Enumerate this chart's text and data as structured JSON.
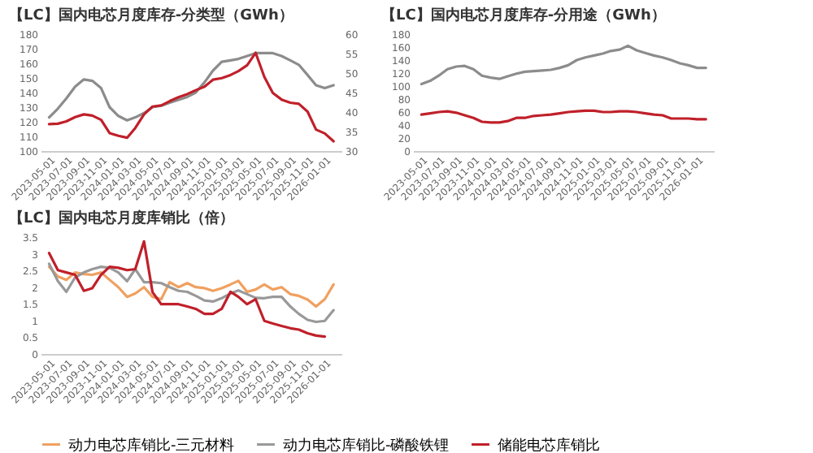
{
  "chart_data": [
    {
      "type": "line",
      "title": "【LC】国内电芯月度库存-分类型（GWh）",
      "x": [
        "2023-05",
        "2023-06",
        "2023-07",
        "2023-08",
        "2023-09",
        "2023-10",
        "2023-11",
        "2023-12",
        "2024-01",
        "2024-02",
        "2024-03",
        "2024-04",
        "2024-05",
        "2024-06",
        "2024-07",
        "2024-08",
        "2024-09",
        "2024-10",
        "2024-11",
        "2024-12",
        "2025-01",
        "2025-02",
        "2025-03",
        "2025-04",
        "2025-05",
        "2025-06",
        "2025-07",
        "2025-08",
        "2025-09",
        "2025-10",
        "2025-11",
        "2025-12",
        "2026-01",
        "2026-02"
      ],
      "xlim": [
        "2023-04-01",
        "2026-03-01"
      ],
      "xticks": [
        "2023-05-01",
        "2023-07-01",
        "2023-09-01",
        "2023-11-01",
        "2024-01-01",
        "2024-03-01",
        "2024-05-01",
        "2024-07-01",
        "2024-09-01",
        "2024-11-01",
        "2025-01-01",
        "2025-03-01",
        "2025-05-01",
        "2025-07-01",
        "2025-09-01",
        "2025-11-01",
        "2026-01-01"
      ],
      "ylim": [
        100,
        180
      ],
      "yticks": [
        100,
        110,
        120,
        130,
        140,
        150,
        160,
        170,
        180
      ],
      "y2lim": [
        30,
        60
      ],
      "y2ticks": [
        30,
        35,
        40,
        45,
        50,
        55,
        60
      ],
      "series": [
        {
          "color": "#8c8c8c",
          "values": [
            123,
            129,
            136,
            144,
            149,
            148,
            143,
            130,
            124,
            121,
            123,
            126,
            130,
            131,
            133,
            135,
            137,
            140,
            147,
            155,
            161,
            162,
            163,
            165,
            167,
            167,
            167,
            165,
            162,
            159,
            152,
            145,
            143,
            145
          ]
        },
        {
          "color": "#c0202a",
          "axis": "y2",
          "values": [
            36.9,
            37.0,
            37.6,
            38.7,
            39.4,
            39.1,
            38.0,
            34.6,
            33.9,
            33.4,
            35.9,
            39.4,
            41.4,
            41.7,
            42.8,
            43.8,
            44.6,
            45.6,
            46.5,
            48.3,
            48.7,
            49.5,
            50.5,
            52.0,
            55.2,
            49.0,
            44.9,
            43.2,
            42.4,
            42.1,
            40.1,
            35.5,
            34.5,
            32.5
          ]
        }
      ]
    },
    {
      "type": "line",
      "title": "【LC】国内电芯月度库存-分用途（GWh）",
      "x": [
        "2023-05",
        "2023-06",
        "2023-07",
        "2023-08",
        "2023-09",
        "2023-10",
        "2023-11",
        "2023-12",
        "2024-01",
        "2024-02",
        "2024-03",
        "2024-04",
        "2024-05",
        "2024-06",
        "2024-07",
        "2024-08",
        "2024-09",
        "2024-10",
        "2024-11",
        "2024-12",
        "2025-01",
        "2025-02",
        "2025-03",
        "2025-04",
        "2025-05",
        "2025-06",
        "2025-07",
        "2025-08",
        "2025-09",
        "2025-10",
        "2025-11",
        "2025-12",
        "2026-01",
        "2026-02"
      ],
      "xlim": [
        "2023-04-01",
        "2026-03-01"
      ],
      "xticks": [
        "2023-05-01",
        "2023-07-01",
        "2023-09-01",
        "2023-11-01",
        "2024-01-01",
        "2024-03-01",
        "2024-05-01",
        "2024-07-01",
        "2024-09-01",
        "2024-11-01",
        "2025-01-01",
        "2025-03-01",
        "2025-05-01",
        "2025-07-01",
        "2025-09-01",
        "2025-11-01",
        "2026-01-01"
      ],
      "ylim": [
        0,
        180
      ],
      "yticks": [
        0,
        20,
        40,
        60,
        80,
        100,
        120,
        140,
        160,
        180
      ],
      "series": [
        {
          "color": "#8c8c8c",
          "values": [
            103,
            108,
            116,
            126,
            130,
            131,
            126,
            116,
            113,
            111,
            115,
            119,
            122,
            123,
            124,
            125,
            128,
            132,
            140,
            144,
            147,
            150,
            154,
            156,
            162,
            155,
            151,
            147,
            144,
            140,
            135,
            132,
            128,
            128
          ]
        },
        {
          "color": "#c0202a",
          "values": [
            56,
            58,
            60,
            61,
            59,
            55,
            51,
            45,
            44,
            44,
            46,
            51,
            51,
            54,
            55,
            56,
            58,
            60,
            61,
            62,
            62,
            60,
            60,
            61,
            61,
            60,
            58,
            56,
            55,
            50,
            50,
            50,
            49,
            49
          ]
        }
      ]
    },
    {
      "type": "line",
      "title": "【LC】国内电芯月度库销比（倍）",
      "legend": "bottom",
      "x": [
        "2023-05",
        "2023-06",
        "2023-07",
        "2023-08",
        "2023-09",
        "2023-10",
        "2023-11",
        "2023-12",
        "2024-01",
        "2024-02",
        "2024-03",
        "2024-04",
        "2024-05",
        "2024-06",
        "2024-07",
        "2024-08",
        "2024-09",
        "2024-10",
        "2024-11",
        "2024-12",
        "2025-01",
        "2025-02",
        "2025-03",
        "2025-04",
        "2025-05",
        "2025-06",
        "2025-07",
        "2025-08",
        "2025-09",
        "2025-10",
        "2025-11",
        "2025-12",
        "2026-01",
        "2026-02"
      ],
      "xlim": [
        "2023-04-01",
        "2026-03-01"
      ],
      "xticks": [
        "2023-05-01",
        "2023-07-01",
        "2023-09-01",
        "2023-11-01",
        "2024-01-01",
        "2024-03-01",
        "2024-05-01",
        "2024-07-01",
        "2024-09-01",
        "2024-11-01",
        "2025-01-01",
        "2025-03-01",
        "2025-05-01",
        "2025-07-01",
        "2025-09-01",
        "2025-11-01",
        "2026-01-01"
      ],
      "ylim": [
        0,
        3.5
      ],
      "yticks": [
        0,
        0.5,
        1,
        1.5,
        2,
        2.5,
        3,
        3.5
      ],
      "series": [
        {
          "name": "动力电芯库销比-三元材料",
          "color": "#f0a060",
          "values": [
            2.61,
            2.32,
            2.22,
            2.44,
            2.39,
            2.37,
            2.44,
            2.22,
            2.0,
            1.71,
            1.81,
            2.0,
            1.71,
            1.64,
            2.15,
            2.0,
            2.12,
            2.0,
            1.97,
            1.89,
            1.97,
            2.08,
            2.19,
            1.86,
            1.93,
            2.08,
            1.93,
            2.0,
            1.79,
            1.74,
            1.63,
            1.42,
            1.64,
            2.08
          ]
        },
        {
          "name": "动力电芯库销比-磷酸铁锂",
          "color": "#999999",
          "values": [
            2.7,
            2.18,
            1.86,
            2.29,
            2.44,
            2.54,
            2.61,
            2.58,
            2.44,
            2.18,
            2.54,
            2.15,
            2.15,
            2.12,
            2.0,
            1.89,
            1.86,
            1.74,
            1.6,
            1.57,
            1.67,
            1.81,
            1.9,
            1.79,
            1.68,
            1.67,
            1.71,
            1.71,
            1.42,
            1.2,
            1.02,
            0.96,
            0.99,
            1.31
          ]
        },
        {
          "name": "储能电芯库销比",
          "color": "#c0202a",
          "values": [
            3.02,
            2.51,
            2.44,
            2.37,
            1.89,
            1.97,
            2.37,
            2.61,
            2.58,
            2.51,
            2.54,
            3.37,
            1.85,
            1.49,
            1.49,
            1.49,
            1.42,
            1.35,
            1.2,
            1.2,
            1.35,
            1.86,
            1.71,
            1.49,
            1.64,
            0.99,
            0.91,
            0.84,
            0.77,
            0.73,
            0.62,
            0.55,
            0.52,
            null
          ]
        }
      ]
    }
  ]
}
